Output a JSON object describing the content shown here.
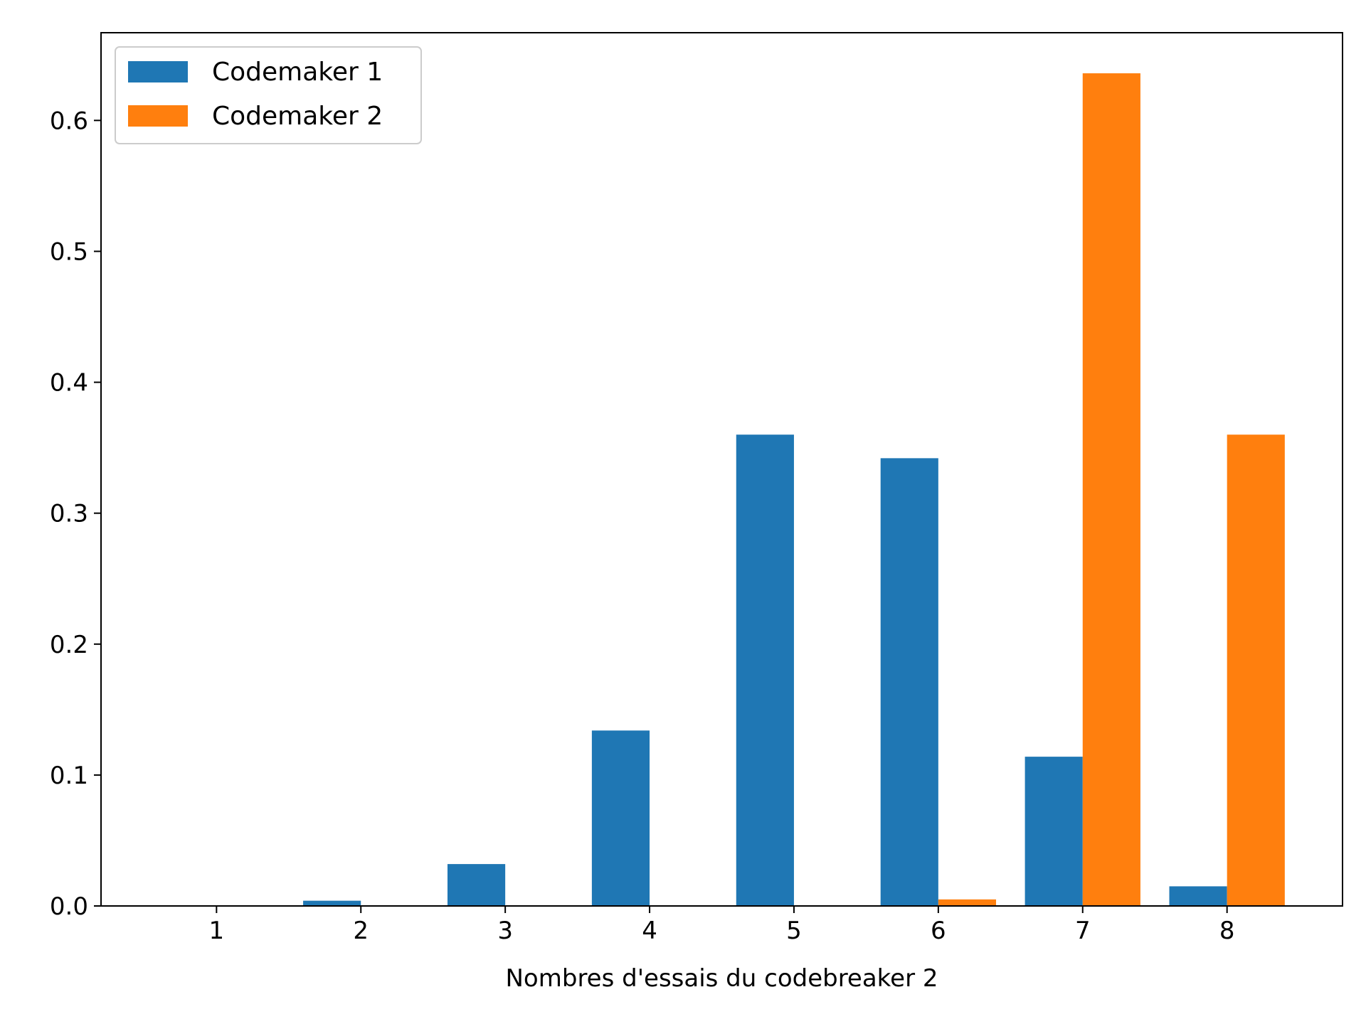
{
  "chart_data": {
    "type": "bar",
    "title": "",
    "xlabel": "Nombres d'essais du codebreaker 2",
    "ylabel": "",
    "categories": [
      "1",
      "2",
      "3",
      "4",
      "5",
      "6",
      "7",
      "8"
    ],
    "series": [
      {
        "name": "Codemaker 1",
        "color": "#1f77b4",
        "values": [
          0.0,
          0.004,
          0.032,
          0.134,
          0.36,
          0.342,
          0.114,
          0.015
        ]
      },
      {
        "name": "Codemaker 2",
        "color": "#ff7f0e",
        "values": [
          0.0,
          0.0,
          0.0,
          0.0,
          0.0,
          0.005,
          0.636,
          0.36
        ]
      }
    ],
    "ylim": [
      0,
      0.667
    ],
    "yticks": [
      "0.0",
      "0.1",
      "0.2",
      "0.3",
      "0.4",
      "0.5",
      "0.6"
    ],
    "grid": false,
    "legend_position": "top-left"
  }
}
